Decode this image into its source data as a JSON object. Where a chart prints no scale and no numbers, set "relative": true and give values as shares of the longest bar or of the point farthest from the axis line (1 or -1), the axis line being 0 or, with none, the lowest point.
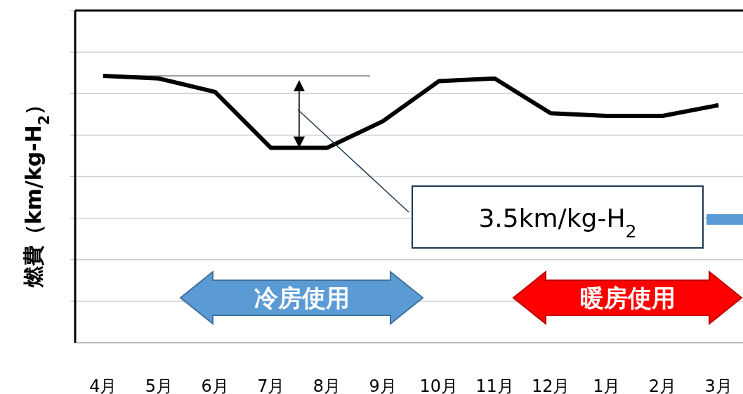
{
  "chart_data": {
    "type": "line",
    "relative": true,
    "ylabel": "燃費（km/kg-H$_{2}$）",
    "categories": [
      "4月",
      "5月",
      "6月",
      "7月",
      "8月",
      "9月",
      "10月",
      "11月",
      "12月",
      "1月",
      "2月",
      "3月"
    ],
    "series": [
      {
        "color": "#000000",
        "values": [
          1,
          0.99,
          0.94,
          0.73,
          0.73,
          0.83,
          0.98,
          0.99,
          0.86,
          0.85,
          0.85,
          0.89
        ]
      }
    ],
    "ref_lines": [
      {
        "axis": "y",
        "value": 1,
        "color": "#404040"
      }
    ],
    "annotations": [
      "3.5km/kg-H$_{2}$",
      "冷房使用",
      "暖房使用"
    ],
    "grid": "y",
    "marker": "none",
    "line_style": "solid"
  }
}
